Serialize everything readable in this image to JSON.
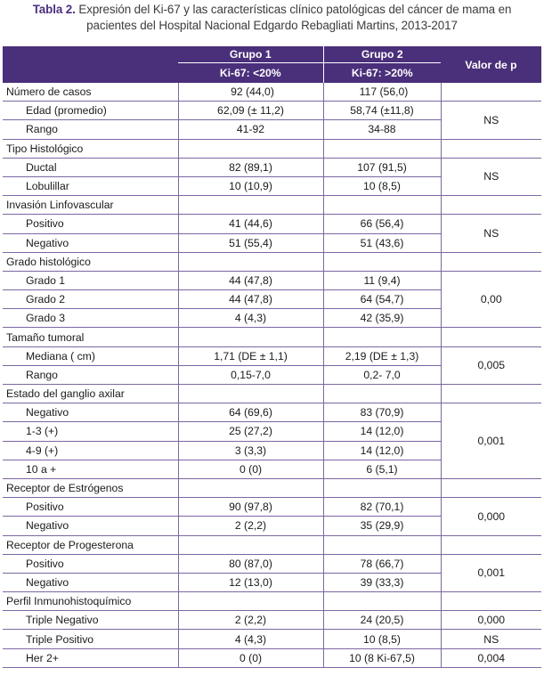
{
  "caption": {
    "label": "Tabla 2.",
    "text_line1": "Expresión del Ki-67 y las características clínico patológicas del cáncer de mama en",
    "text_line2": "pacientes del Hospital Nacional Edgardo Rebagliati Martins, 2013-2017"
  },
  "header": {
    "group1": "Grupo 1",
    "group1_sub": "Ki-67: <20%",
    "group2": "Grupo 2",
    "group2_sub": "Ki-67: >20%",
    "pvalue": "Valor de p"
  },
  "rows": [
    {
      "type": "top",
      "name": "Número de casos",
      "g1": "92 (44,0)",
      "g2": "117 (56,0)"
    },
    {
      "type": "sub",
      "name": "Edad (promedio)",
      "g1": "62,09 (± 11,2)",
      "g2": "58,74 (±11,8)"
    },
    {
      "type": "sub",
      "name": "Rango",
      "g1": "41-92",
      "g2": "34-88"
    },
    {
      "type": "sec",
      "name": "Tipo Histológico"
    },
    {
      "type": "sub",
      "name": "Ductal",
      "g1": "82 (89,1)",
      "g2": "107 (91,5)"
    },
    {
      "type": "sub",
      "name": "Lobulillar",
      "g1": "10 (10,9)",
      "g2": "10 (8,5)"
    },
    {
      "type": "sec",
      "name": "Invasión Linfovascular"
    },
    {
      "type": "sub",
      "name": "Positivo",
      "g1": "41 (44,6)",
      "g2": "66 (56,4)"
    },
    {
      "type": "sub",
      "name": "Negativo",
      "g1": "51 (55,4)",
      "g2": "51 (43,6)"
    },
    {
      "type": "sec",
      "name": "Grado histológico"
    },
    {
      "type": "sub",
      "name": "Grado 1",
      "g1": "44 (47,8)",
      "g2": "11 (9,4)"
    },
    {
      "type": "sub",
      "name": "Grado 2",
      "g1": "44 (47,8)",
      "g2": "64 (54,7)"
    },
    {
      "type": "sub",
      "name": "Grado 3",
      "g1": "4 (4,3)",
      "g2": "42 (35,9)"
    },
    {
      "type": "sec",
      "name": "Tamaño tumoral"
    },
    {
      "type": "sub",
      "name": "Mediana ( cm)",
      "g1": "1,71 (DE ± 1,1)",
      "g2": "2,19 (DE ± 1,3)"
    },
    {
      "type": "sub",
      "name": "Rango",
      "g1": "0,15-7,0",
      "g2": "0,2- 7,0"
    },
    {
      "type": "sec",
      "name": "Estado del ganglio axilar"
    },
    {
      "type": "sub",
      "name": "Negativo",
      "g1": "64 (69,6)",
      "g2": "83 (70,9)"
    },
    {
      "type": "sub",
      "name": "1-3 (+)",
      "g1": "25 (27,2)",
      "g2": "14 (12,0)"
    },
    {
      "type": "sub",
      "name": "4-9 (+)",
      "g1": "3 (3,3)",
      "g2": "14 (12,0)"
    },
    {
      "type": "sub",
      "name": "10 a +",
      "g1": "0 (0)",
      "g2": "6 (5,1)"
    },
    {
      "type": "sec",
      "name": "Receptor de Estrógenos"
    },
    {
      "type": "sub",
      "name": "Positivo",
      "g1": "90 (97,8)",
      "g2": "82 (70,1)"
    },
    {
      "type": "sub",
      "name": "Negativo",
      "g1": "2 (2,2)",
      "g2": "35 (29,9)"
    },
    {
      "type": "sec",
      "name": "Receptor de Progesterona"
    },
    {
      "type": "sub",
      "name": "Positivo",
      "g1": "80 (87,0)",
      "g2": "78 (66,7)"
    },
    {
      "type": "sub",
      "name": "Negativo",
      "g1": "12 (13,0)",
      "g2": "39 (33,3)"
    },
    {
      "type": "sec",
      "name": "Perfil Inmunohistoquímico"
    },
    {
      "type": "sub",
      "name": "Triple Negativo",
      "g1": "2 (2,2)",
      "g2": "24 (20,5)"
    },
    {
      "type": "sub",
      "name": "Triple Positivo",
      "g1": "4 (4,3)",
      "g2": "10 (8,5)"
    },
    {
      "type": "sub",
      "name": "Her 2+",
      "g1": "0 (0)",
      "g2": "10 (8 Ki-67,5)"
    }
  ],
  "pvalues": [
    {
      "row": 0,
      "span": 1,
      "value": ""
    },
    {
      "row": 1,
      "span": 2,
      "value": "NS"
    },
    {
      "row": 3,
      "span": 1,
      "value": ""
    },
    {
      "row": 4,
      "span": 2,
      "value": "NS"
    },
    {
      "row": 6,
      "span": 1,
      "value": ""
    },
    {
      "row": 7,
      "span": 2,
      "value": "NS"
    },
    {
      "row": 9,
      "span": 1,
      "value": ""
    },
    {
      "row": 10,
      "span": 3,
      "value": "0,00"
    },
    {
      "row": 13,
      "span": 1,
      "value": ""
    },
    {
      "row": 14,
      "span": 2,
      "value": "0,005"
    },
    {
      "row": 16,
      "span": 1,
      "value": ""
    },
    {
      "row": 17,
      "span": 4,
      "value": "0,001"
    },
    {
      "row": 21,
      "span": 1,
      "value": ""
    },
    {
      "row": 22,
      "span": 2,
      "value": "0,000"
    },
    {
      "row": 24,
      "span": 1,
      "value": ""
    },
    {
      "row": 25,
      "span": 2,
      "value": "0,001"
    },
    {
      "row": 27,
      "span": 1,
      "value": ""
    },
    {
      "row": 28,
      "span": 1,
      "value": "0,000"
    },
    {
      "row": 29,
      "span": 1,
      "value": "NS"
    },
    {
      "row": 30,
      "span": 1,
      "value": "0,004"
    }
  ]
}
